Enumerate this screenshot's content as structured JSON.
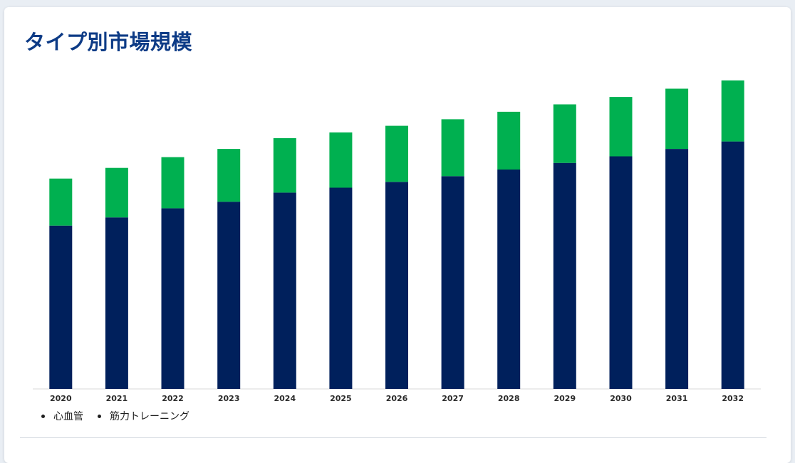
{
  "header": {
    "title": "タイプ別市場規模"
  },
  "colors": {
    "cardio": "#00205c",
    "strength": "#00b050",
    "title": "#0d3b86"
  },
  "chart_data": {
    "type": "bar",
    "stacked": true,
    "categories": [
      "2020",
      "2021",
      "2022",
      "2023",
      "2024",
      "2025",
      "2026",
      "2027",
      "2028",
      "2029",
      "2030",
      "2031",
      "2032"
    ],
    "series": [
      {
        "name": "心血管",
        "color": "#00205c",
        "values": [
          198,
          208,
          219,
          227,
          238,
          244,
          251,
          258,
          266,
          274,
          282,
          291,
          300
        ]
      },
      {
        "name": "筋力トレーニング",
        "color": "#00b050",
        "values": [
          57,
          60,
          62,
          64,
          66,
          67,
          68,
          69,
          70,
          71,
          72,
          73,
          74
        ]
      }
    ],
    "ylim": [
      0,
      380
    ],
    "grid": false,
    "legend_position": "bottom-left"
  }
}
